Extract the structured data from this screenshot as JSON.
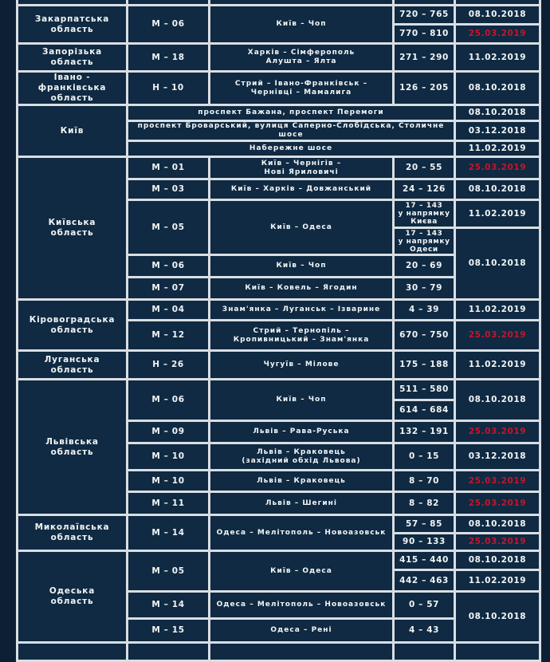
{
  "colors": {
    "background": "#0f2a42",
    "grid": "#d9dee3",
    "text": "#f2f4f6",
    "highlight_date": "#c3162c"
  },
  "rows": [
    {
      "cells": [
        {
          "t": "",
          "c": "region"
        },
        {
          "t": "",
          "c": "road"
        },
        {
          "t": "",
          "c": "route"
        },
        {
          "t": "",
          "c": "km"
        },
        {
          "t": "",
          "c": "date"
        }
      ]
    },
    {
      "cells": [
        {
          "t": "Закарпатська\nобласть",
          "c": "region",
          "rs": 2
        },
        {
          "t": "М – 06",
          "c": "road",
          "rs": 2
        },
        {
          "t": "Київ – Чоп",
          "c": "route",
          "rs": 2
        },
        {
          "t": "720 – 765",
          "c": "km"
        },
        {
          "t": "08.10.2018",
          "c": "date"
        }
      ]
    },
    {
      "cells": [
        {
          "t": "770 – 810",
          "c": "km"
        },
        {
          "t": "25.03.2019",
          "c": "date",
          "red": true
        }
      ]
    },
    {
      "cells": [
        {
          "t": "Запорізька\nобласть",
          "c": "region"
        },
        {
          "t": "М – 18",
          "c": "road"
        },
        {
          "t": "Харків – Сімферополь\nАлушта – Ялта",
          "c": "route"
        },
        {
          "t": "271 – 290",
          "c": "km"
        },
        {
          "t": "11.02.2019",
          "c": "date"
        }
      ]
    },
    {
      "cells": [
        {
          "t": "Івано - франківська\nобласть",
          "c": "region"
        },
        {
          "t": "Н – 10",
          "c": "road"
        },
        {
          "t": "Стрий – Івано-Франківськ –\nЧернівці – Мамалига",
          "c": "route"
        },
        {
          "t": "126 – 205",
          "c": "km"
        },
        {
          "t": "08.10.2018",
          "c": "date"
        }
      ]
    },
    {
      "cells": [
        {
          "t": "Київ",
          "c": "region",
          "rs": 3
        },
        {
          "t": "проспект Бажана, проспект Перемоги",
          "c": "route",
          "cs": 3
        },
        {
          "t": "08.10.2018",
          "c": "date"
        }
      ]
    },
    {
      "cells": [
        {
          "t": "проспект Броварський, вулиця Саперно-Слобідська, Столичне шосе",
          "c": "route",
          "cs": 3
        },
        {
          "t": "03.12.2018",
          "c": "date"
        }
      ]
    },
    {
      "cells": [
        {
          "t": "Набережне шосе",
          "c": "route",
          "cs": 3
        },
        {
          "t": "11.02.2019",
          "c": "date"
        }
      ]
    },
    {
      "cells": [
        {
          "t": "Київська\nобласть",
          "c": "region",
          "rs": 6
        },
        {
          "t": "М – 01",
          "c": "road"
        },
        {
          "t": "Київ – Чернігів –\nНові  Яриловичі",
          "c": "route"
        },
        {
          "t": "20 – 55",
          "c": "km"
        },
        {
          "t": "25.03.2019",
          "c": "date",
          "red": true
        }
      ]
    },
    {
      "cells": [
        {
          "t": "М – 03",
          "c": "road"
        },
        {
          "t": "Київ – Харків – Довжанський",
          "c": "route"
        },
        {
          "t": "24 – 126",
          "c": "km"
        },
        {
          "t": "08.10.2018",
          "c": "date"
        }
      ]
    },
    {
      "cells": [
        {
          "t": "М – 05",
          "c": "road",
          "rs": 2
        },
        {
          "t": "Київ – Одеса",
          "c": "route",
          "rs": 2
        },
        {
          "t": "17 – 143\nу напрямку\nКиєва",
          "c": "km small"
        },
        {
          "t": "11.02.2019",
          "c": "date"
        }
      ]
    },
    {
      "cells": [
        {
          "t": "17 – 143\nу напрямку\nОдеси",
          "c": "km small"
        },
        {
          "t": "08.10.2018",
          "c": "date",
          "rs": 3
        }
      ]
    },
    {
      "cells": [
        {
          "t": "М – 06",
          "c": "road"
        },
        {
          "t": "Київ – Чоп",
          "c": "route"
        },
        {
          "t": "20 – 69",
          "c": "km"
        }
      ]
    },
    {
      "cells": [
        {
          "t": "М – 07",
          "c": "road"
        },
        {
          "t": "Київ – Ковель – Ягодин",
          "c": "route"
        },
        {
          "t": "30 – 79",
          "c": "km"
        }
      ]
    },
    {
      "cells": [
        {
          "t": "Кіровоградська\nобласть",
          "c": "region",
          "rs": 2
        },
        {
          "t": "М – 04",
          "c": "road"
        },
        {
          "t": "Знам'янка – Луганськ – Ізварине",
          "c": "route"
        },
        {
          "t": "4 – 39",
          "c": "km"
        },
        {
          "t": "11.02.2019",
          "c": "date"
        }
      ]
    },
    {
      "cells": [
        {
          "t": "М – 12",
          "c": "road"
        },
        {
          "t": "Стрий – Тернопіль –\nКропивницький – Знам'янка",
          "c": "route"
        },
        {
          "t": "670 – 750",
          "c": "km"
        },
        {
          "t": "25.03.2019",
          "c": "date",
          "red": true
        }
      ]
    },
    {
      "cells": [
        {
          "t": "Луганська\nобласть",
          "c": "region"
        },
        {
          "t": "Н – 26",
          "c": "road"
        },
        {
          "t": "Чугуїв – Мілове",
          "c": "route"
        },
        {
          "t": "175 – 188",
          "c": "km"
        },
        {
          "t": "11.02.2019",
          "c": "date"
        }
      ]
    },
    {
      "cells": [
        {
          "t": "Львівська\nобласть",
          "c": "region",
          "rs": 6
        },
        {
          "t": "М – 06",
          "c": "road",
          "rs": 2
        },
        {
          "t": "Київ – Чоп",
          "c": "route",
          "rs": 2
        },
        {
          "t": "511 – 580",
          "c": "km"
        },
        {
          "t": "08.10.2018",
          "c": "date",
          "rs": 2
        }
      ]
    },
    {
      "cells": [
        {
          "t": "614 – 684",
          "c": "km"
        }
      ]
    },
    {
      "cells": [
        {
          "t": "М – 09",
          "c": "road"
        },
        {
          "t": "Львів – Рава-Руська",
          "c": "route"
        },
        {
          "t": "132 – 191",
          "c": "km"
        },
        {
          "t": "25.03.2019",
          "c": "date",
          "red": true
        }
      ]
    },
    {
      "cells": [
        {
          "t": "М – 10",
          "c": "road"
        },
        {
          "t": "Львів – Краковець\n(західний обхід Львова)",
          "c": "route"
        },
        {
          "t": "0 – 15",
          "c": "km"
        },
        {
          "t": "03.12.2018",
          "c": "date"
        }
      ]
    },
    {
      "cells": [
        {
          "t": "М – 10",
          "c": "road"
        },
        {
          "t": "Львів – Краковець",
          "c": "route"
        },
        {
          "t": "8 – 70",
          "c": "km"
        },
        {
          "t": "25.03.2019",
          "c": "date",
          "red": true
        }
      ]
    },
    {
      "cells": [
        {
          "t": "М – 11",
          "c": "road"
        },
        {
          "t": "Львів – Шегині",
          "c": "route"
        },
        {
          "t": "8 – 82",
          "c": "km"
        },
        {
          "t": "25.03.2019",
          "c": "date",
          "red": true
        }
      ]
    },
    {
      "cells": [
        {
          "t": "Миколаївська\nобласть",
          "c": "region",
          "rs": 2
        },
        {
          "t": "М – 14",
          "c": "road",
          "rs": 2
        },
        {
          "t": "Одеса – Мелітополь – Новоазовськ",
          "c": "route",
          "rs": 2
        },
        {
          "t": "57 – 85",
          "c": "km"
        },
        {
          "t": "08.10.2018",
          "c": "date"
        }
      ]
    },
    {
      "cells": [
        {
          "t": "90 – 133",
          "c": "km"
        },
        {
          "t": "25.03.2019",
          "c": "date",
          "red": true
        }
      ]
    },
    {
      "cells": [
        {
          "t": "Одеська\nобласть",
          "c": "region",
          "rs": 4
        },
        {
          "t": "М – 05",
          "c": "road",
          "rs": 2
        },
        {
          "t": "Київ – Одеса",
          "c": "route",
          "rs": 2
        },
        {
          "t": "415 – 440",
          "c": "km"
        },
        {
          "t": "08.10.2018",
          "c": "date"
        }
      ]
    },
    {
      "cells": [
        {
          "t": "442 – 463",
          "c": "km"
        },
        {
          "t": "11.02.2019",
          "c": "date"
        }
      ]
    },
    {
      "cells": [
        {
          "t": "М – 14",
          "c": "road"
        },
        {
          "t": "Одеса – Мелітополь – Новоазовськ",
          "c": "route"
        },
        {
          "t": "0 – 57",
          "c": "km"
        },
        {
          "t": "08.10.2018",
          "c": "date",
          "rs": 2
        }
      ]
    },
    {
      "cells": [
        {
          "t": "М – 15",
          "c": "road"
        },
        {
          "t": "Одеса – Рені",
          "c": "route"
        },
        {
          "t": "4 – 43",
          "c": "km"
        }
      ]
    },
    {
      "cells": [
        {
          "t": "",
          "c": "region"
        },
        {
          "t": "",
          "c": "road"
        },
        {
          "t": "",
          "c": "route"
        },
        {
          "t": "",
          "c": "km"
        },
        {
          "t": "",
          "c": "date"
        }
      ]
    }
  ]
}
